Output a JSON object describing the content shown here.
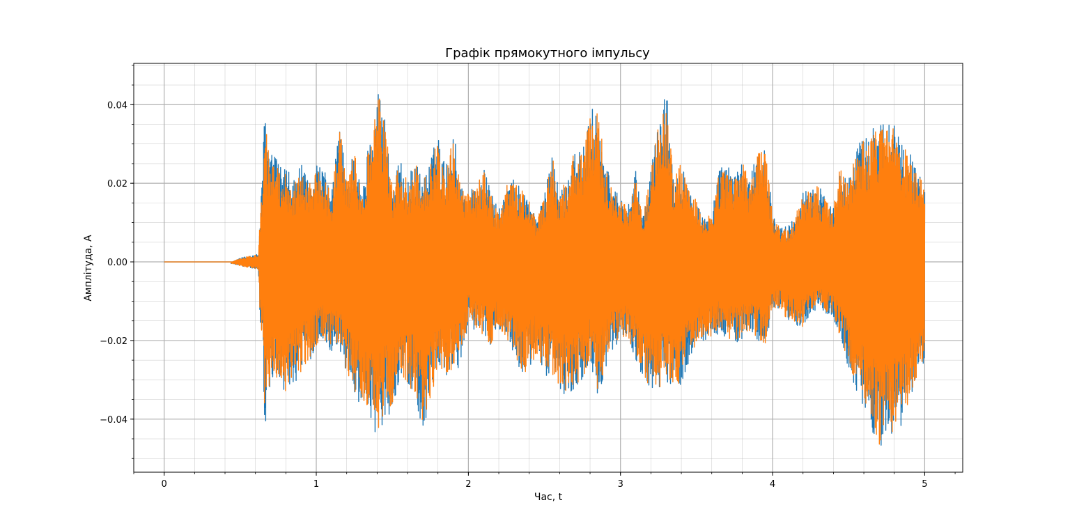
{
  "chart_data": {
    "type": "line",
    "title": "Графік прямокутного імпульсу",
    "xlabel": "Час, t",
    "ylabel": "Амплітуда, A",
    "xlim": [
      -0.2,
      5.25
    ],
    "ylim": [
      -0.0535,
      0.0505
    ],
    "xticks": [
      0,
      1,
      2,
      3,
      4,
      5
    ],
    "xtick_labels": [
      "0",
      "1",
      "2",
      "3",
      "4",
      "5"
    ],
    "yticks": [
      -0.04,
      -0.02,
      0.0,
      0.02,
      0.04
    ],
    "ytick_labels": [
      "−0.04",
      "−0.02",
      "0.00",
      "0.02",
      "0.04"
    ],
    "grid": true,
    "minor_grid": true,
    "legend": "none",
    "series": [
      {
        "color": "#1f77b4",
        "envelope": {
          "t": [
            0,
            0.45,
            0.5,
            0.62,
            0.63,
            0.65,
            0.66,
            0.68,
            0.7,
            0.75,
            0.8,
            0.85,
            0.9,
            0.95,
            1.0,
            1.05,
            1.1,
            1.15,
            1.2,
            1.25,
            1.3,
            1.35,
            1.38,
            1.4,
            1.45,
            1.5,
            1.55,
            1.6,
            1.65,
            1.7,
            1.75,
            1.8,
            1.85,
            1.9,
            1.95,
            2.0,
            2.05,
            2.1,
            2.15,
            2.2,
            2.25,
            2.3,
            2.35,
            2.4,
            2.45,
            2.5,
            2.55,
            2.6,
            2.65,
            2.7,
            2.75,
            2.8,
            2.85,
            2.9,
            2.95,
            3.0,
            3.05,
            3.1,
            3.15,
            3.2,
            3.25,
            3.3,
            3.35,
            3.4,
            3.45,
            3.5,
            3.55,
            3.6,
            3.65,
            3.7,
            3.75,
            3.8,
            3.85,
            3.9,
            3.95,
            4.0,
            4.05,
            4.1,
            4.15,
            4.2,
            4.25,
            4.3,
            4.35,
            4.4,
            4.45,
            4.5,
            4.55,
            4.6,
            4.65,
            4.7,
            4.75,
            4.8,
            4.85,
            4.9,
            4.95,
            5.0
          ],
          "max": [
            0.0,
            0.0,
            0.001,
            0.002,
            0.012,
            0.024,
            0.046,
            0.03,
            0.028,
            0.026,
            0.024,
            0.021,
            0.025,
            0.02,
            0.026,
            0.024,
            0.017,
            0.037,
            0.021,
            0.03,
            0.017,
            0.033,
            0.035,
            0.046,
            0.038,
            0.02,
            0.026,
            0.021,
            0.026,
            0.021,
            0.026,
            0.033,
            0.024,
            0.035,
            0.02,
            0.018,
            0.02,
            0.024,
            0.018,
            0.013,
            0.02,
            0.021,
            0.019,
            0.016,
            0.011,
            0.017,
            0.028,
            0.018,
            0.022,
            0.03,
            0.028,
            0.038,
            0.041,
            0.025,
            0.02,
            0.017,
            0.014,
            0.023,
            0.012,
            0.024,
            0.036,
            0.045,
            0.022,
            0.026,
            0.019,
            0.016,
            0.011,
            0.013,
            0.024,
            0.025,
            0.022,
            0.027,
            0.021,
            0.028,
            0.031,
            0.012,
            0.009,
            0.009,
            0.012,
            0.018,
            0.019,
            0.02,
            0.016,
            0.014,
            0.027,
            0.021,
            0.03,
            0.032,
            0.033,
            0.037,
            0.035,
            0.037,
            0.031,
            0.028,
            0.024,
            0.02
          ],
          "min": [
            0.0,
            -0.0005,
            -0.001,
            -0.002,
            -0.016,
            -0.021,
            -0.048,
            -0.035,
            -0.035,
            -0.031,
            -0.034,
            -0.031,
            -0.029,
            -0.026,
            -0.022,
            -0.02,
            -0.023,
            -0.022,
            -0.029,
            -0.034,
            -0.037,
            -0.038,
            -0.043,
            -0.045,
            -0.04,
            -0.038,
            -0.029,
            -0.032,
            -0.035,
            -0.043,
            -0.037,
            -0.028,
            -0.03,
            -0.028,
            -0.027,
            -0.015,
            -0.018,
            -0.02,
            -0.022,
            -0.017,
            -0.02,
            -0.023,
            -0.03,
            -0.028,
            -0.024,
            -0.029,
            -0.03,
            -0.033,
            -0.034,
            -0.032,
            -0.031,
            -0.025,
            -0.034,
            -0.028,
            -0.022,
            -0.02,
            -0.02,
            -0.025,
            -0.03,
            -0.033,
            -0.034,
            -0.03,
            -0.034,
            -0.031,
            -0.026,
            -0.022,
            -0.02,
            -0.02,
            -0.018,
            -0.02,
            -0.021,
            -0.02,
            -0.018,
            -0.02,
            -0.022,
            -0.012,
            -0.013,
            -0.015,
            -0.016,
            -0.017,
            -0.013,
            -0.012,
            -0.013,
            -0.015,
            -0.02,
            -0.029,
            -0.033,
            -0.037,
            -0.044,
            -0.048,
            -0.046,
            -0.044,
            -0.042,
            -0.036,
            -0.03,
            -0.025
          ]
        }
      },
      {
        "color": "#ff7f0e",
        "envelope_scale": 0.97
      }
    ]
  }
}
